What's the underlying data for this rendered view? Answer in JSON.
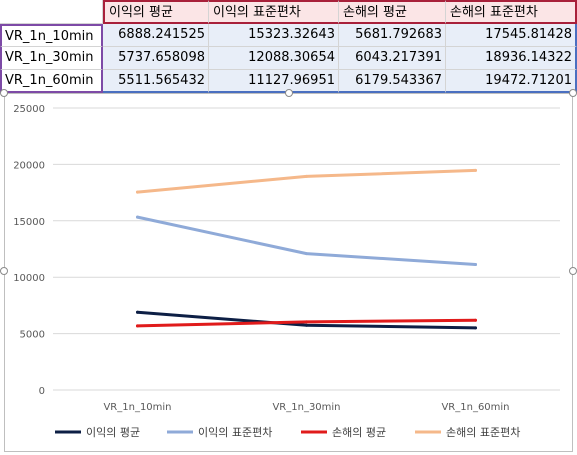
{
  "table": {
    "headers": [
      "이익의 평균",
      "이익의 표준편차",
      "손해의 평균",
      "손해의 표준편차"
    ],
    "rows": [
      {
        "label": "VR_1n_10min",
        "values": [
          "6888.241525",
          "15323.32643",
          "5681.792683",
          "17545.81428"
        ]
      },
      {
        "label": "VR_1n_30min",
        "values": [
          "5737.658098",
          "12088.30654",
          "6043.217391",
          "18936.14322"
        ]
      },
      {
        "label": "VR_1n_60min",
        "values": [
          "5511.565432",
          "11127.96951",
          "6179.543367",
          "19472.71201"
        ]
      }
    ]
  },
  "chart_data": {
    "type": "line",
    "categories": [
      "VR_1n_10min",
      "VR_1n_30min",
      "VR_1n_60min"
    ],
    "ylim": [
      0,
      25000
    ],
    "yticks": [
      0,
      5000,
      10000,
      15000,
      20000,
      25000
    ],
    "grid": true,
    "legend_position": "bottom",
    "series": [
      {
        "name": "이익의 평균",
        "color": "#0d1f45",
        "values": [
          6888.241525,
          5737.658098,
          5511.565432
        ]
      },
      {
        "name": "이익의 표준편차",
        "color": "#8faad8",
        "values": [
          15323.32643,
          12088.30654,
          11127.96951
        ]
      },
      {
        "name": "손해의 평균",
        "color": "#e01b1b",
        "values": [
          5681.792683,
          6043.217391,
          6179.543367
        ]
      },
      {
        "name": "손해의 표준편차",
        "color": "#f5b88a",
        "values": [
          17545.81428,
          18936.14322,
          19472.71201
        ]
      }
    ]
  }
}
